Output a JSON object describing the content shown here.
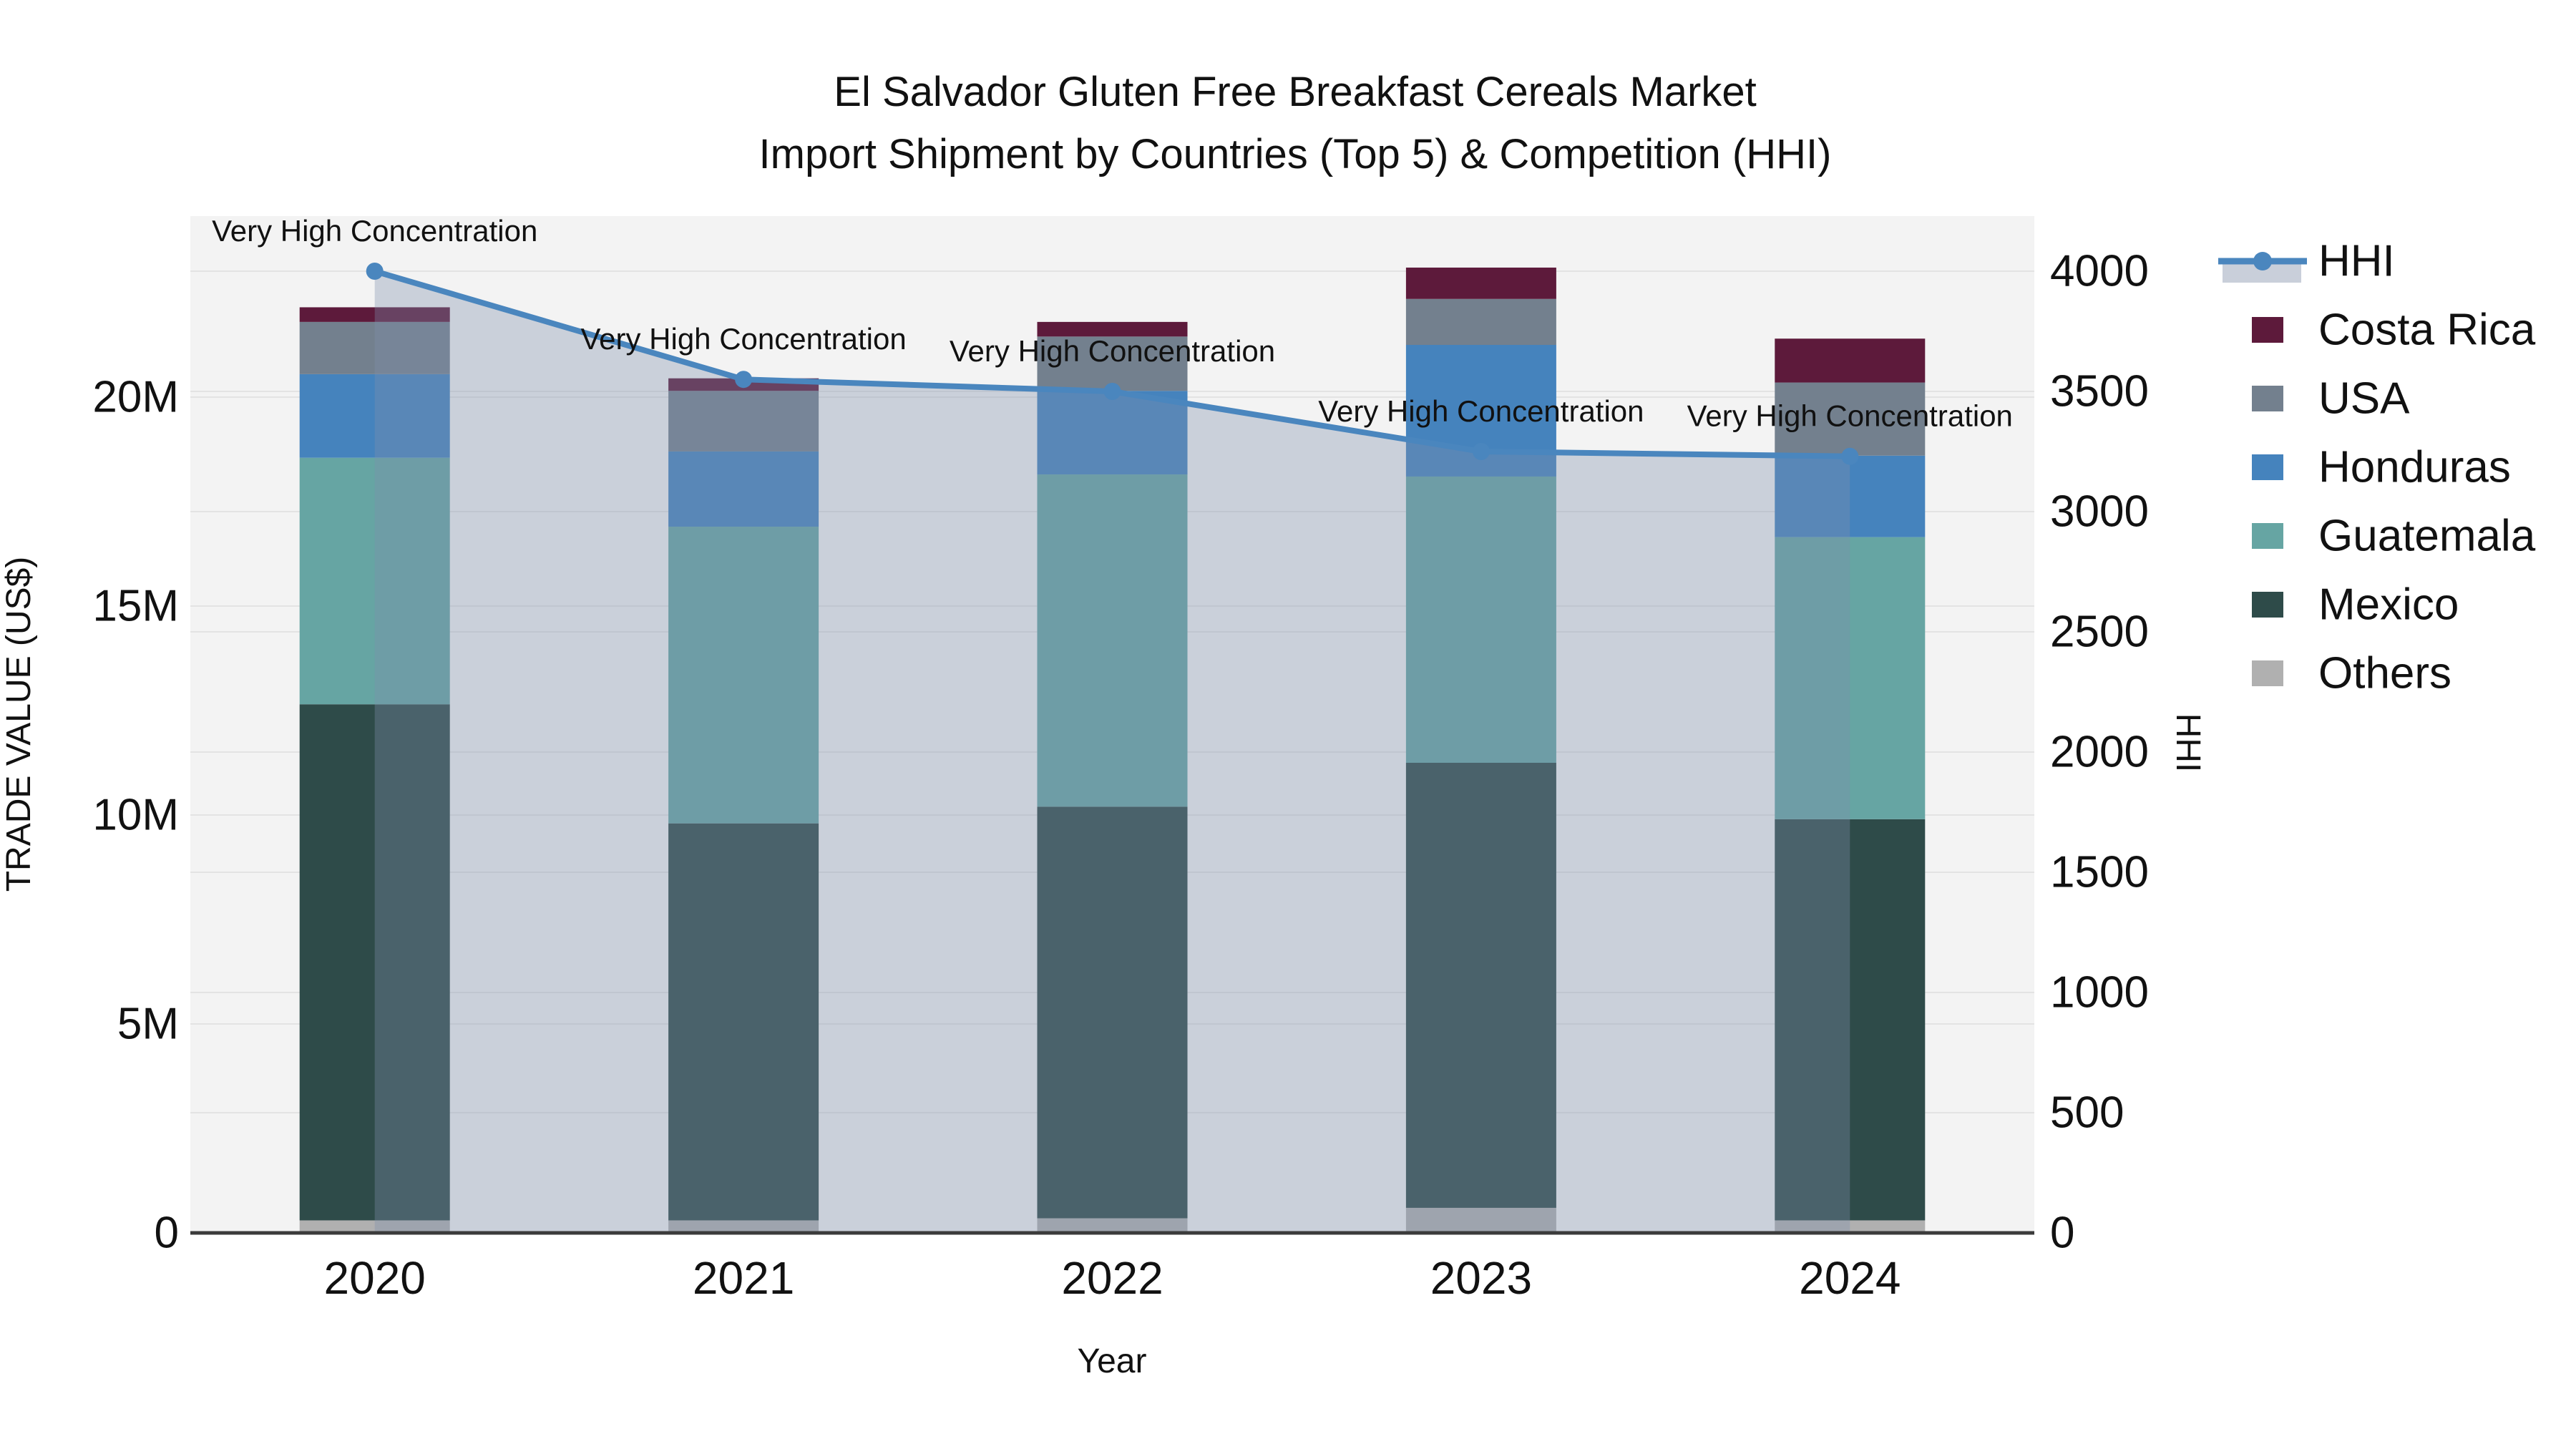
{
  "title": {
    "line1": "El Salvador Gluten Free Breakfast Cereals Market",
    "line2": "Import Shipment by Countries (Top 5) & Competition (HHI)"
  },
  "axes": {
    "x": {
      "label": "Year"
    },
    "y_left": {
      "label": "TRADE VALUE (US$)"
    },
    "y_right": {
      "label": "HHI"
    }
  },
  "chart_data": {
    "type": "stacked-bar+line",
    "categories": [
      "2020",
      "2021",
      "2022",
      "2023",
      "2024"
    ],
    "value_unit": "USD millions",
    "series": [
      {
        "name": "Others",
        "color_key": "others",
        "values": [
          0.3,
          0.3,
          0.35,
          0.6,
          0.3
        ]
      },
      {
        "name": "Mexico",
        "color_key": "mexico",
        "values": [
          12.35,
          9.5,
          9.85,
          10.65,
          9.6
        ]
      },
      {
        "name": "Guatemala",
        "color_key": "guatemala",
        "values": [
          5.9,
          7.1,
          7.95,
          6.85,
          6.75
        ]
      },
      {
        "name": "Honduras",
        "color_key": "honduras",
        "values": [
          2.0,
          1.8,
          2.0,
          3.15,
          1.95
        ]
      },
      {
        "name": "USA",
        "color_key": "usa",
        "values": [
          1.25,
          1.45,
          1.3,
          1.1,
          1.75
        ]
      },
      {
        "name": "Costa Rica",
        "color_key": "costa_rica",
        "values": [
          0.35,
          0.3,
          0.35,
          0.75,
          1.05
        ]
      }
    ],
    "bar_totals_millions": [
      22.15,
      20.45,
      21.8,
      23.1,
      21.4
    ],
    "line": {
      "name": "HHI",
      "color_key": "hhi_line",
      "values": [
        4000,
        3550,
        3500,
        3250,
        3230
      ]
    },
    "annotations": [
      {
        "text": "Very High Concentration",
        "category": "2020"
      },
      {
        "text": "Very High Concentration",
        "category": "2021"
      },
      {
        "text": "Very High Concentration",
        "category": "2022"
      },
      {
        "text": "Very High Concentration",
        "category": "2023"
      },
      {
        "text": "Very High Concentration",
        "category": "2024"
      }
    ],
    "y_left_ticks": [
      {
        "v": 0,
        "label": "0"
      },
      {
        "v": 5,
        "label": "5M"
      },
      {
        "v": 10,
        "label": "10M"
      },
      {
        "v": 15,
        "label": "15M"
      },
      {
        "v": 20,
        "label": "20M"
      }
    ],
    "y_right_ticks": [
      {
        "v": 0,
        "label": "0"
      },
      {
        "v": 500,
        "label": "500"
      },
      {
        "v": 1000,
        "label": "1000"
      },
      {
        "v": 1500,
        "label": "1500"
      },
      {
        "v": 2000,
        "label": "2000"
      },
      {
        "v": 2500,
        "label": "2500"
      },
      {
        "v": 3000,
        "label": "3000"
      },
      {
        "v": 3500,
        "label": "3500"
      },
      {
        "v": 4000,
        "label": "4000"
      }
    ],
    "legend_order": [
      "HHI",
      "Costa Rica",
      "USA",
      "Honduras",
      "Guatemala",
      "Mexico",
      "Others"
    ],
    "grid": true,
    "legend_position": "right"
  },
  "colors": {
    "plot_bg": "#f3f3f3",
    "grid": "#e3e3e3",
    "axis_line": "#3b3b3b",
    "others": "#b0b0b0",
    "mexico": "#2e4b49",
    "guatemala": "#66a5a3",
    "honduras": "#4583bd",
    "usa": "#73808e",
    "costa_rica": "#5d1a3b",
    "hhi_line": "#4a86be",
    "area_overlay": "rgba(125,142,173,0.35)",
    "area_legend": "#c9cfda",
    "text": "#111111"
  }
}
